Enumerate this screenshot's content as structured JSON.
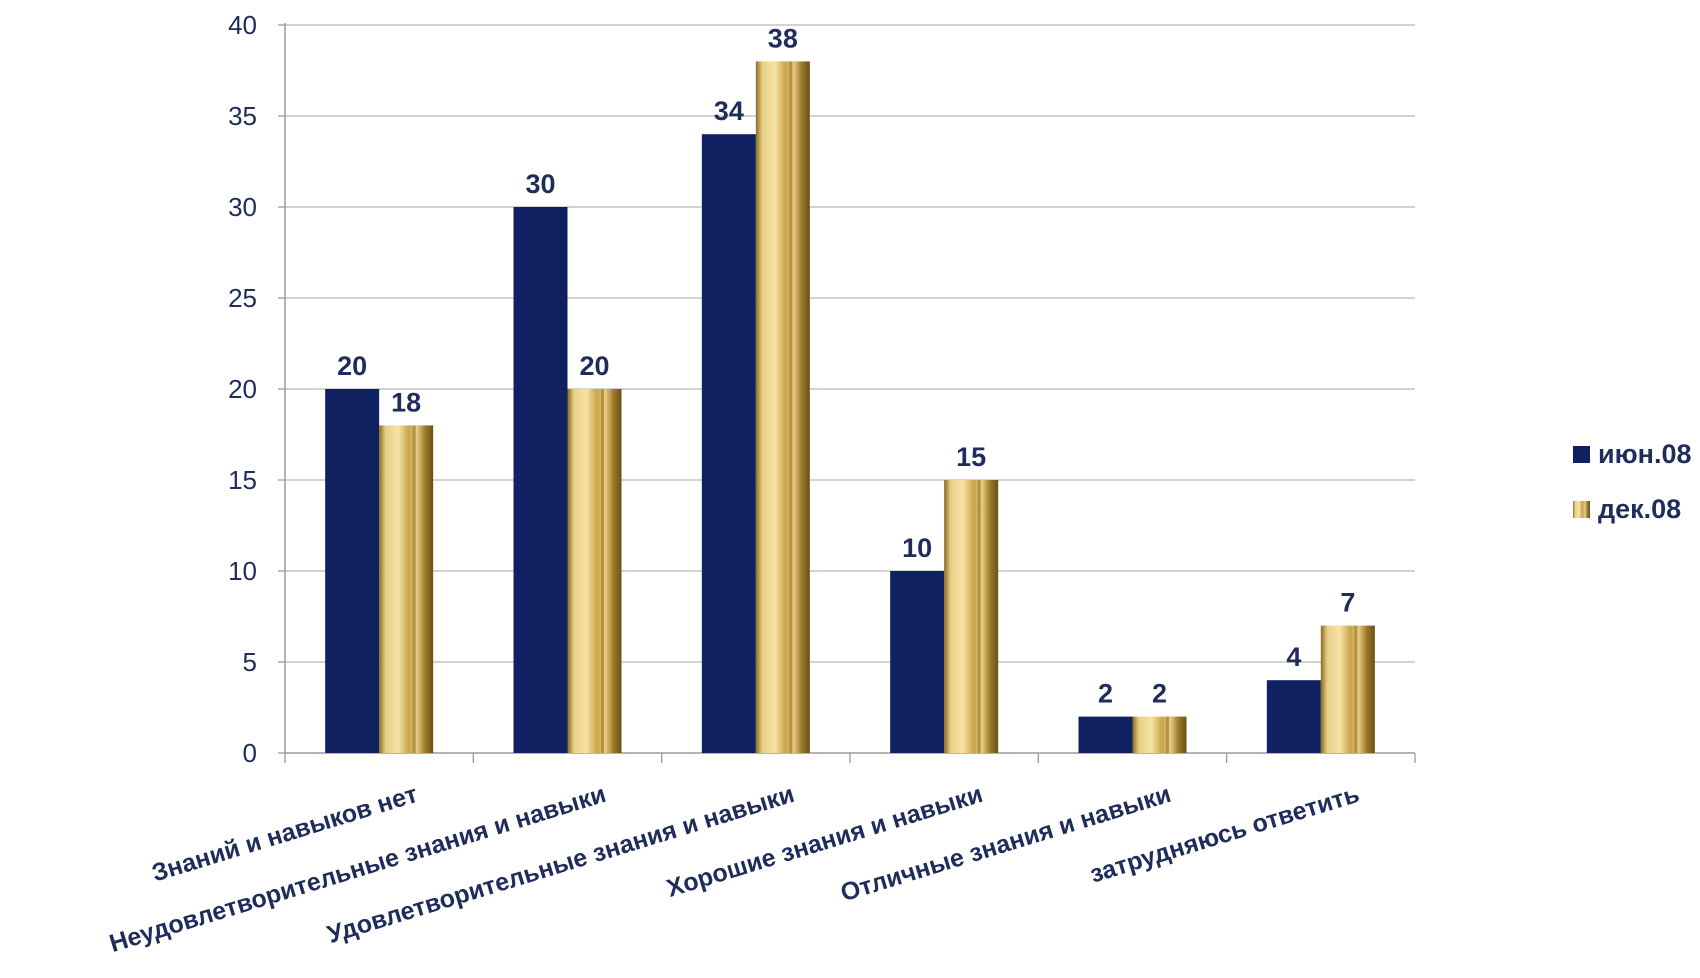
{
  "chart_data": {
    "type": "bar",
    "title": "",
    "xlabel": "",
    "ylabel": "",
    "ylim": [
      0,
      40
    ],
    "yticks": [
      0,
      5,
      10,
      15,
      20,
      25,
      30,
      35,
      40
    ],
    "grid": true,
    "legend_position": "right",
    "categories": [
      "Знаний и навыков нет",
      "Неудовлетворительные знания и навыки",
      "Удовлетворительные знания и навыки",
      "Хорошие знания и навыки",
      "Отличные знания и навыки",
      "затрудняюсь ответить"
    ],
    "series": [
      {
        "name": "июн.08",
        "color": "#0f2160",
        "values": [
          20,
          30,
          34,
          10,
          2,
          4
        ]
      },
      {
        "name": "дек.08",
        "color": "#c9a449",
        "values": [
          18,
          20,
          38,
          15,
          2,
          7
        ]
      }
    ]
  }
}
